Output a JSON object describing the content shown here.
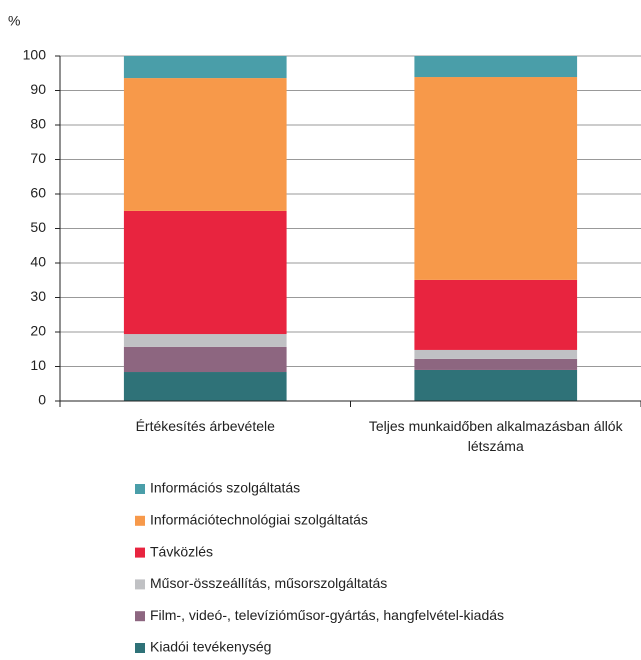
{
  "chart_data": {
    "type": "stacked_bar",
    "y_label": "%",
    "categories": [
      "Értékesítés árbevétele",
      "Teljes munkaidőben alkalmazásban állók létszáma"
    ],
    "series": [
      {
        "name": "Kiadói tevékenység",
        "color": "#2f7278",
        "values": [
          8.4,
          9.0
        ]
      },
      {
        "name": "Film-, videó-, televízióműsor-gyártás, hangfelvétel-kiadás",
        "color": "#8d6680",
        "values": [
          7.3,
          3.2
        ]
      },
      {
        "name": "Műsor-összeállítás, műsorszolgáltatás",
        "color": "#c0c1c4",
        "values": [
          3.7,
          2.6
        ]
      },
      {
        "name": "Távközlés",
        "color": "#e8243f",
        "values": [
          35.7,
          20.3
        ]
      },
      {
        "name": "Információtechnológiai szolgáltatás",
        "color": "#f7994a",
        "values": [
          38.5,
          58.8
        ]
      },
      {
        "name": "Információs szolgáltatás",
        "color": "#4a9ea9",
        "values": [
          6.4,
          6.1
        ]
      }
    ],
    "ylim": [
      0,
      100
    ],
    "yticks": [
      0,
      10,
      20,
      30,
      40,
      50,
      60,
      70,
      80,
      90,
      100
    ],
    "grid": true
  }
}
